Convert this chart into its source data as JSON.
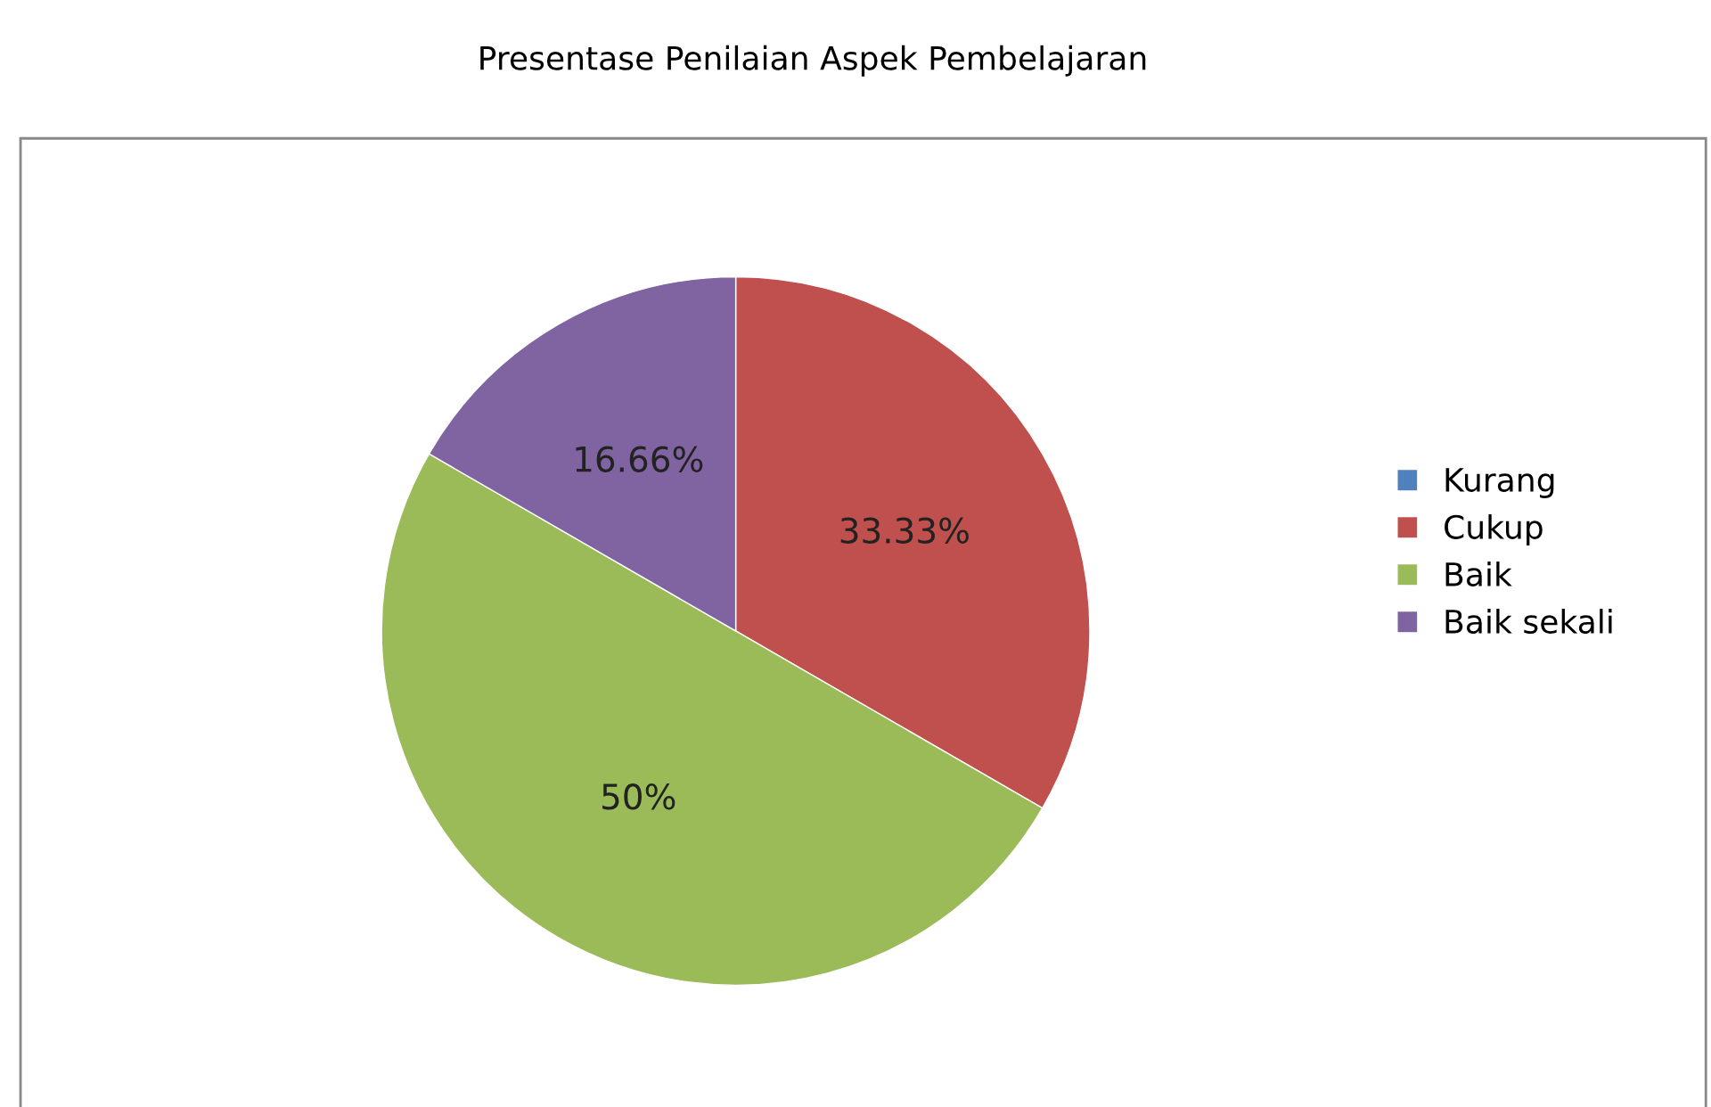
{
  "chart_data": {
    "type": "pie",
    "title": "Presentase Penilaian Aspek Pembelajaran",
    "categories": [
      "Kurang",
      "Cukup",
      "Baik",
      "Baik sekali"
    ],
    "values": [
      0,
      33.33,
      50,
      16.66
    ],
    "colors": [
      "#4f81bd",
      "#c0504d",
      "#9bbb59",
      "#8064a2"
    ],
    "value_labels": [
      null,
      "33.33%",
      "50%",
      "16.66%"
    ],
    "legend": "right"
  }
}
